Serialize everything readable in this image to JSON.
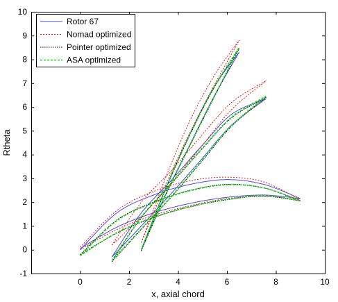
{
  "chart_data": {
    "type": "line",
    "title": "",
    "xlabel": "x, axial chord",
    "ylabel": "Rtheta",
    "xlim": [
      -2,
      10
    ],
    "ylim": [
      -1,
      10
    ],
    "xticks": [
      0,
      2,
      4,
      6,
      8,
      10
    ],
    "yticks": [
      -1,
      0,
      1,
      2,
      3,
      4,
      5,
      6,
      7,
      8,
      9,
      10
    ],
    "grid": false,
    "legend_position": "top-left",
    "series": [
      {
        "name": "Rotor 67",
        "color": "#4a4ad8",
        "dash": "solid",
        "blades": [
          {
            "pressure": [
              [
                0.0,
                0.05
              ],
              [
                1.5,
                0.95
              ],
              [
                3.0,
                1.55
              ],
              [
                4.5,
                1.95
              ],
              [
                6.0,
                2.2
              ],
              [
                7.5,
                2.3
              ],
              [
                9.0,
                2.15
              ]
            ],
            "suction": [
              [
                0.0,
                0.0
              ],
              [
                1.5,
                1.55
              ],
              [
                3.0,
                2.3
              ],
              [
                4.5,
                2.75
              ],
              [
                6.0,
                2.95
              ],
              [
                7.5,
                2.75
              ],
              [
                9.0,
                2.15
              ]
            ]
          },
          {
            "pressure": [
              [
                1.3,
                -0.3
              ],
              [
                2.5,
                1.0
              ],
              [
                3.8,
                2.45
              ],
              [
                5.0,
                3.85
              ],
              [
                6.2,
                5.25
              ],
              [
                7.6,
                6.35
              ]
            ],
            "suction": [
              [
                1.3,
                -0.3
              ],
              [
                2.5,
                1.55
              ],
              [
                3.8,
                3.0
              ],
              [
                5.0,
                4.4
              ],
              [
                6.2,
                5.7
              ],
              [
                7.6,
                6.35
              ]
            ]
          },
          {
            "pressure": [
              [
                2.5,
                0.0
              ],
              [
                3.5,
                2.35
              ],
              [
                4.5,
                4.45
              ],
              [
                5.5,
                6.5
              ],
              [
                6.5,
                8.3
              ]
            ],
            "suction": [
              [
                2.5,
                0.0
              ],
              [
                3.5,
                2.6
              ],
              [
                4.5,
                4.9
              ],
              [
                5.5,
                6.9
              ],
              [
                6.5,
                8.3
              ]
            ]
          }
        ]
      },
      {
        "name": "Nomad optimized",
        "color": "#e01818",
        "dash": "2,2",
        "blades": [
          {
            "pressure": [
              [
                0.0,
                0.0
              ],
              [
                1.5,
                0.85
              ],
              [
                3.0,
                1.45
              ],
              [
                4.5,
                1.85
              ],
              [
                6.0,
                2.15
              ],
              [
                7.5,
                2.25
              ],
              [
                9.0,
                2.1
              ]
            ],
            "suction": [
              [
                0.0,
                0.1
              ],
              [
                1.5,
                1.65
              ],
              [
                3.0,
                2.45
              ],
              [
                4.5,
                2.9
              ],
              [
                6.0,
                3.05
              ],
              [
                7.5,
                2.85
              ],
              [
                9.0,
                2.1
              ]
            ]
          },
          {
            "pressure": [
              [
                1.3,
                0.2
              ],
              [
                2.5,
                1.4
              ],
              [
                3.8,
                2.9
              ],
              [
                5.0,
                4.4
              ],
              [
                6.2,
                5.9
              ],
              [
                7.6,
                7.1
              ]
            ],
            "suction": [
              [
                1.3,
                0.2
              ],
              [
                2.5,
                2.0
              ],
              [
                3.8,
                3.4
              ],
              [
                5.0,
                4.85
              ],
              [
                6.2,
                6.2
              ],
              [
                7.6,
                7.1
              ]
            ]
          },
          {
            "pressure": [
              [
                2.5,
                0.3
              ],
              [
                3.5,
                2.75
              ],
              [
                4.5,
                4.95
              ],
              [
                5.5,
                6.95
              ],
              [
                6.5,
                8.8
              ]
            ],
            "suction": [
              [
                2.5,
                0.3
              ],
              [
                3.5,
                3.05
              ],
              [
                4.5,
                5.45
              ],
              [
                5.5,
                7.35
              ],
              [
                6.5,
                8.8
              ]
            ]
          }
        ]
      },
      {
        "name": "Pointer optimized",
        "color": "#000000",
        "dash": "1.5,1.5",
        "blades": [
          {
            "pressure": [
              [
                0.0,
                -0.2
              ],
              [
                1.5,
                0.7
              ],
              [
                3.0,
                1.35
              ],
              [
                4.5,
                1.8
              ],
              [
                6.0,
                2.1
              ],
              [
                7.5,
                2.25
              ],
              [
                9.0,
                2.05
              ]
            ],
            "suction": [
              [
                0.0,
                -0.2
              ],
              [
                1.5,
                1.25
              ],
              [
                3.0,
                2.0
              ],
              [
                4.5,
                2.5
              ],
              [
                6.0,
                2.75
              ],
              [
                7.5,
                2.6
              ],
              [
                9.0,
                2.05
              ]
            ]
          },
          {
            "pressure": [
              [
                1.3,
                -0.5
              ],
              [
                2.5,
                0.85
              ],
              [
                3.8,
                2.3
              ],
              [
                5.0,
                3.75
              ],
              [
                6.2,
                5.2
              ],
              [
                7.6,
                6.4
              ]
            ],
            "suction": [
              [
                1.3,
                -0.5
              ],
              [
                2.5,
                1.35
              ],
              [
                3.8,
                2.85
              ],
              [
                5.0,
                4.25
              ],
              [
                6.2,
                5.55
              ],
              [
                7.6,
                6.4
              ]
            ]
          },
          {
            "pressure": [
              [
                2.5,
                -0.05
              ],
              [
                3.5,
                2.3
              ],
              [
                4.5,
                4.4
              ],
              [
                5.5,
                6.45
              ],
              [
                6.5,
                8.45
              ]
            ],
            "suction": [
              [
                2.5,
                -0.05
              ],
              [
                3.5,
                2.55
              ],
              [
                4.5,
                4.85
              ],
              [
                5.5,
                6.85
              ],
              [
                6.5,
                8.45
              ]
            ]
          }
        ]
      },
      {
        "name": "ASA optimized",
        "color": "#18d018",
        "dash": "3,2",
        "blades": [
          {
            "pressure": [
              [
                0.0,
                -0.25
              ],
              [
                1.5,
                0.72
              ],
              [
                3.0,
                1.37
              ],
              [
                4.5,
                1.82
              ],
              [
                6.0,
                2.12
              ],
              [
                7.5,
                2.27
              ],
              [
                9.0,
                2.07
              ]
            ],
            "suction": [
              [
                0.0,
                -0.25
              ],
              [
                1.5,
                1.22
              ],
              [
                3.0,
                1.98
              ],
              [
                4.5,
                2.48
              ],
              [
                6.0,
                2.73
              ],
              [
                7.5,
                2.6
              ],
              [
                9.0,
                2.07
              ]
            ]
          },
          {
            "pressure": [
              [
                1.3,
                -0.45
              ],
              [
                2.5,
                0.88
              ],
              [
                3.8,
                2.33
              ],
              [
                5.0,
                3.78
              ],
              [
                6.2,
                5.23
              ],
              [
                7.6,
                6.45
              ]
            ],
            "suction": [
              [
                1.3,
                -0.45
              ],
              [
                2.5,
                1.38
              ],
              [
                3.8,
                2.88
              ],
              [
                5.0,
                4.28
              ],
              [
                6.2,
                5.58
              ],
              [
                7.6,
                6.45
              ]
            ]
          },
          {
            "pressure": [
              [
                2.5,
                0.0
              ],
              [
                3.5,
                2.33
              ],
              [
                4.5,
                4.43
              ],
              [
                5.5,
                6.48
              ],
              [
                6.5,
                8.5
              ]
            ],
            "suction": [
              [
                2.5,
                0.0
              ],
              [
                3.5,
                2.58
              ],
              [
                4.5,
                4.88
              ],
              [
                5.5,
                6.88
              ],
              [
                6.5,
                8.5
              ]
            ]
          }
        ]
      }
    ]
  }
}
